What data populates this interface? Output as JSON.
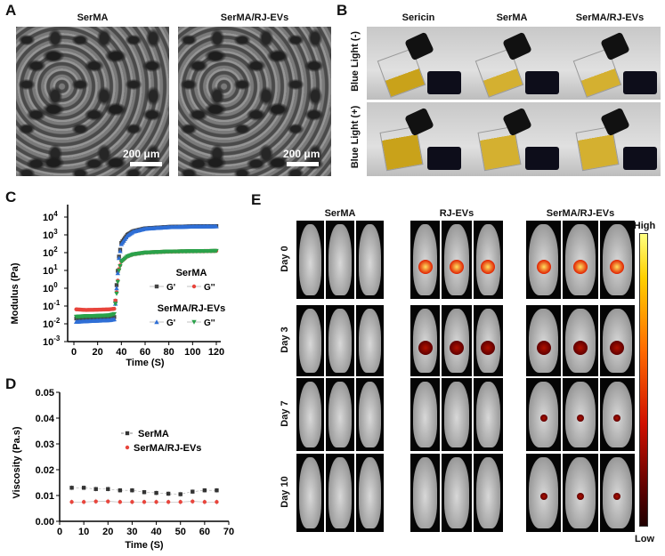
{
  "panels": {
    "A": "A",
    "B": "B",
    "C": "C",
    "D": "D",
    "E": "E"
  },
  "panel_a": {
    "titles": [
      "SerMA",
      "SerMA/RJ-EVs"
    ],
    "scale_bar": "200 μm"
  },
  "panel_b": {
    "columns": [
      "Sericin",
      "SerMA",
      "SerMA/RJ-EVs"
    ],
    "rows": [
      "Blue Light (-)",
      "Blue Light (+)"
    ]
  },
  "panel_e": {
    "columns": [
      "SerMA",
      "RJ-EVs",
      "SerMA/RJ-EVs"
    ],
    "rows": [
      "Day 0",
      "Day 3",
      "Day 7",
      "Day 10"
    ],
    "colorbar_high": "High",
    "colorbar_low": "Low"
  },
  "chart_data": [
    {
      "type": "scatter",
      "panel": "C",
      "xlabel": "Time (S)",
      "ylabel": "Modulus (Pa)",
      "xlim": [
        0,
        120
      ],
      "ylim": [
        0.001,
        10000
      ],
      "yscale": "log",
      "xticks": [
        "0",
        "20",
        "40",
        "60",
        "80",
        "100",
        "120"
      ],
      "yticks": [
        "10-3",
        "10-2",
        "10-1",
        "100",
        "101",
        "102",
        "103",
        "104"
      ],
      "legend": {
        "groups": [
          "SerMA",
          "SerMA/RJ-EVs"
        ],
        "entries": [
          "G'",
          "G''"
        ],
        "placement": "right"
      },
      "x": [
        2,
        10,
        20,
        30,
        34,
        36,
        38,
        40,
        45,
        50,
        60,
        80,
        100,
        120
      ],
      "series": [
        {
          "group": "SerMA",
          "name": "G'",
          "color": "#444444",
          "marker": "square",
          "values": [
            0.02,
            0.02,
            0.021,
            0.022,
            0.024,
            1.5,
            60,
            350,
            1000,
            1600,
            2300,
            2800,
            3000,
            3100
          ]
        },
        {
          "group": "SerMA",
          "name": "G''",
          "color": "#e8453c",
          "marker": "circle",
          "values": [
            0.065,
            0.06,
            0.062,
            0.065,
            0.07,
            0.6,
            12,
            32,
            62,
            82,
            102,
            116,
            122,
            126
          ]
        },
        {
          "group": "SerMA/RJ-EVs",
          "name": "G'",
          "color": "#2f6fd6",
          "marker": "triangle-up",
          "values": [
            0.013,
            0.014,
            0.015,
            0.016,
            0.018,
            1,
            50,
            300,
            900,
            1500,
            2200,
            2700,
            2900,
            3000
          ]
        },
        {
          "group": "SerMA/RJ-EVs",
          "name": "G''",
          "color": "#2aa24a",
          "marker": "triangle-down",
          "values": [
            0.025,
            0.027,
            0.028,
            0.03,
            0.035,
            0.5,
            10,
            30,
            60,
            80,
            100,
            115,
            120,
            125
          ]
        }
      ]
    },
    {
      "type": "line",
      "panel": "D",
      "xlabel": "Time (S)",
      "ylabel": "Viscosity (Pa.s)",
      "xlim": [
        0,
        70
      ],
      "ylim": [
        0,
        0.05
      ],
      "xticks": [
        "0",
        "10",
        "20",
        "30",
        "40",
        "50",
        "60",
        "70"
      ],
      "yticks": [
        "0.00",
        "0.01",
        "0.02",
        "0.03",
        "0.04",
        "0.05"
      ],
      "legend_placement": "center",
      "x": [
        5,
        10,
        15,
        20,
        25,
        30,
        35,
        40,
        45,
        50,
        55,
        60,
        65
      ],
      "series": [
        {
          "name": "SerMA",
          "color": "#333333",
          "values": [
            0.013,
            0.013,
            0.0125,
            0.0125,
            0.012,
            0.012,
            0.0113,
            0.011,
            0.0107,
            0.0105,
            0.0115,
            0.012,
            0.012
          ]
        },
        {
          "name": "SerMA/RJ-EVs",
          "color": "#e8453c",
          "values": [
            0.0075,
            0.0075,
            0.0077,
            0.0077,
            0.0075,
            0.0075,
            0.0075,
            0.0075,
            0.0075,
            0.0075,
            0.0077,
            0.0075,
            0.0075
          ]
        }
      ]
    }
  ]
}
